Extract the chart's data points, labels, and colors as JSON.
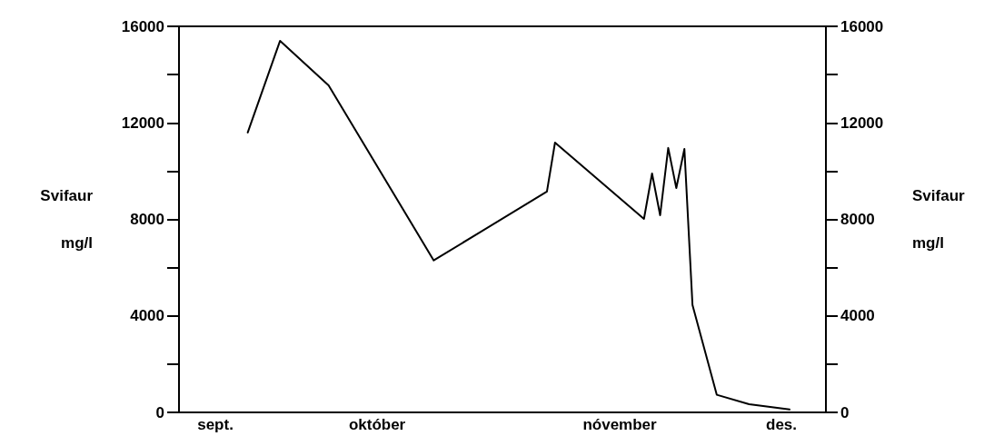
{
  "chart_data": {
    "type": "line",
    "ylabel": "Svifaur\nmg/l",
    "y2label": "Svifaur\nmg/l",
    "categories": [
      null,
      null,
      null,
      null,
      "sept.",
      null,
      null,
      null,
      null,
      null,
      null,
      null,
      null,
      null,
      null,
      null,
      null,
      null,
      null,
      null,
      null,
      null,
      null,
      null,
      "október",
      null,
      null,
      null,
      null,
      null,
      null,
      null,
      null,
      null,
      null,
      null,
      null,
      null,
      null,
      null,
      null,
      null,
      null,
      null,
      null,
      null,
      null,
      null,
      null,
      null,
      null,
      null,
      null,
      null,
      "nóvember",
      null,
      null,
      null,
      null,
      null,
      null,
      null,
      null,
      null,
      null,
      null,
      null,
      null,
      null,
      null,
      null,
      null,
      null,
      null,
      "des.",
      null,
      null,
      null,
      null,
      null
    ],
    "series": [
      {
        "color": "#000000",
        "values": [
          null,
          null,
          null,
          null,
          null,
          null,
          null,
          null,
          11600,
          null,
          null,
          null,
          15400,
          null,
          null,
          null,
          null,
          null,
          13550,
          null,
          null,
          null,
          null,
          null,
          null,
          null,
          null,
          null,
          null,
          null,
          null,
          6300,
          null,
          null,
          null,
          null,
          null,
          null,
          null,
          null,
          null,
          null,
          null,
          null,
          null,
          9150,
          11180,
          null,
          null,
          null,
          null,
          null,
          null,
          null,
          null,
          null,
          null,
          8020,
          9900,
          8170,
          10960,
          9300,
          10920,
          4450,
          null,
          null,
          730,
          null,
          null,
          null,
          340,
          null,
          null,
          null,
          null,
          120,
          null,
          null,
          null,
          null
        ]
      }
    ],
    "ylim": [
      0,
      16000
    ],
    "yticks": [
      0,
      {
        "value": 2000,
        "label": null
      },
      4000,
      {
        "value": 6000,
        "label": null
      },
      8000,
      {
        "value": 10000,
        "label": null
      },
      12000,
      {
        "value": 14000,
        "label": null
      },
      16000
    ],
    "y2lim": [
      0,
      16000
    ],
    "y2ticks": [
      0,
      {
        "value": 2000,
        "label": null
      },
      4000,
      {
        "value": 6000,
        "label": null
      },
      8000,
      {
        "value": 10000,
        "label": null
      },
      12000,
      {
        "value": 14000,
        "label": null
      },
      16000
    ],
    "grid": false,
    "marker": "none",
    "line_style": "solid"
  }
}
